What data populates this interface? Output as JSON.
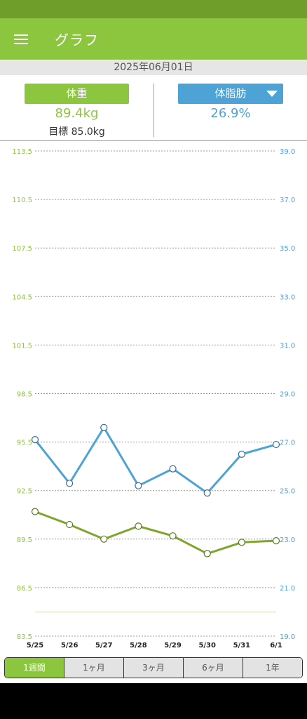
{
  "app": {
    "title": "グラフ"
  },
  "date": "2025年06月01日",
  "summary": {
    "weight_label": "体重",
    "weight_value": "89.4kg",
    "goal_text": "目標 85.0kg",
    "fat_label": "体脂肪",
    "fat_value": "26.9%"
  },
  "tabs": [
    {
      "label": "1週間",
      "active": true
    },
    {
      "label": "1ヶ月",
      "active": false
    },
    {
      "label": "3ヶ月",
      "active": false
    },
    {
      "label": "6ヶ月",
      "active": false
    },
    {
      "label": "1年",
      "active": false
    }
  ],
  "colors": {
    "primary": "#8cc53e",
    "status": "#6f9f2a",
    "fat": "#4ea3d6",
    "weight_line": "#7ea52e"
  },
  "icons": {
    "menu": "hamburger-icon",
    "dropdown": "triangle-down-icon"
  },
  "chart_data": {
    "type": "line",
    "x": [
      "5/25",
      "5/26",
      "5/27",
      "5/28",
      "5/29",
      "5/30",
      "5/31",
      "6/1"
    ],
    "left_axis": {
      "ticks": [
        "113.5",
        "110.5",
        "107.5",
        "104.5",
        "101.5",
        "98.5",
        "95.5",
        "92.5",
        "89.5",
        "86.5",
        "83.5"
      ],
      "ylim": [
        83.5,
        113.5
      ]
    },
    "right_axis": {
      "ticks": [
        "39.0",
        "37.0",
        "35.0",
        "33.0",
        "31.0",
        "29.0",
        "27.0",
        "25.0",
        "23.0",
        "21.0",
        "19.0"
      ],
      "ylim": [
        19.0,
        39.0
      ]
    },
    "series": [
      {
        "axis": "right",
        "values": [
          27.1,
          25.3,
          27.6,
          25.2,
          25.9,
          24.9,
          26.5,
          26.9
        ]
      },
      {
        "axis": "left",
        "values": [
          91.2,
          90.4,
          89.5,
          90.3,
          89.7,
          88.6,
          89.3,
          89.4
        ]
      }
    ],
    "goal_line": 85.0,
    "grid": true
  }
}
